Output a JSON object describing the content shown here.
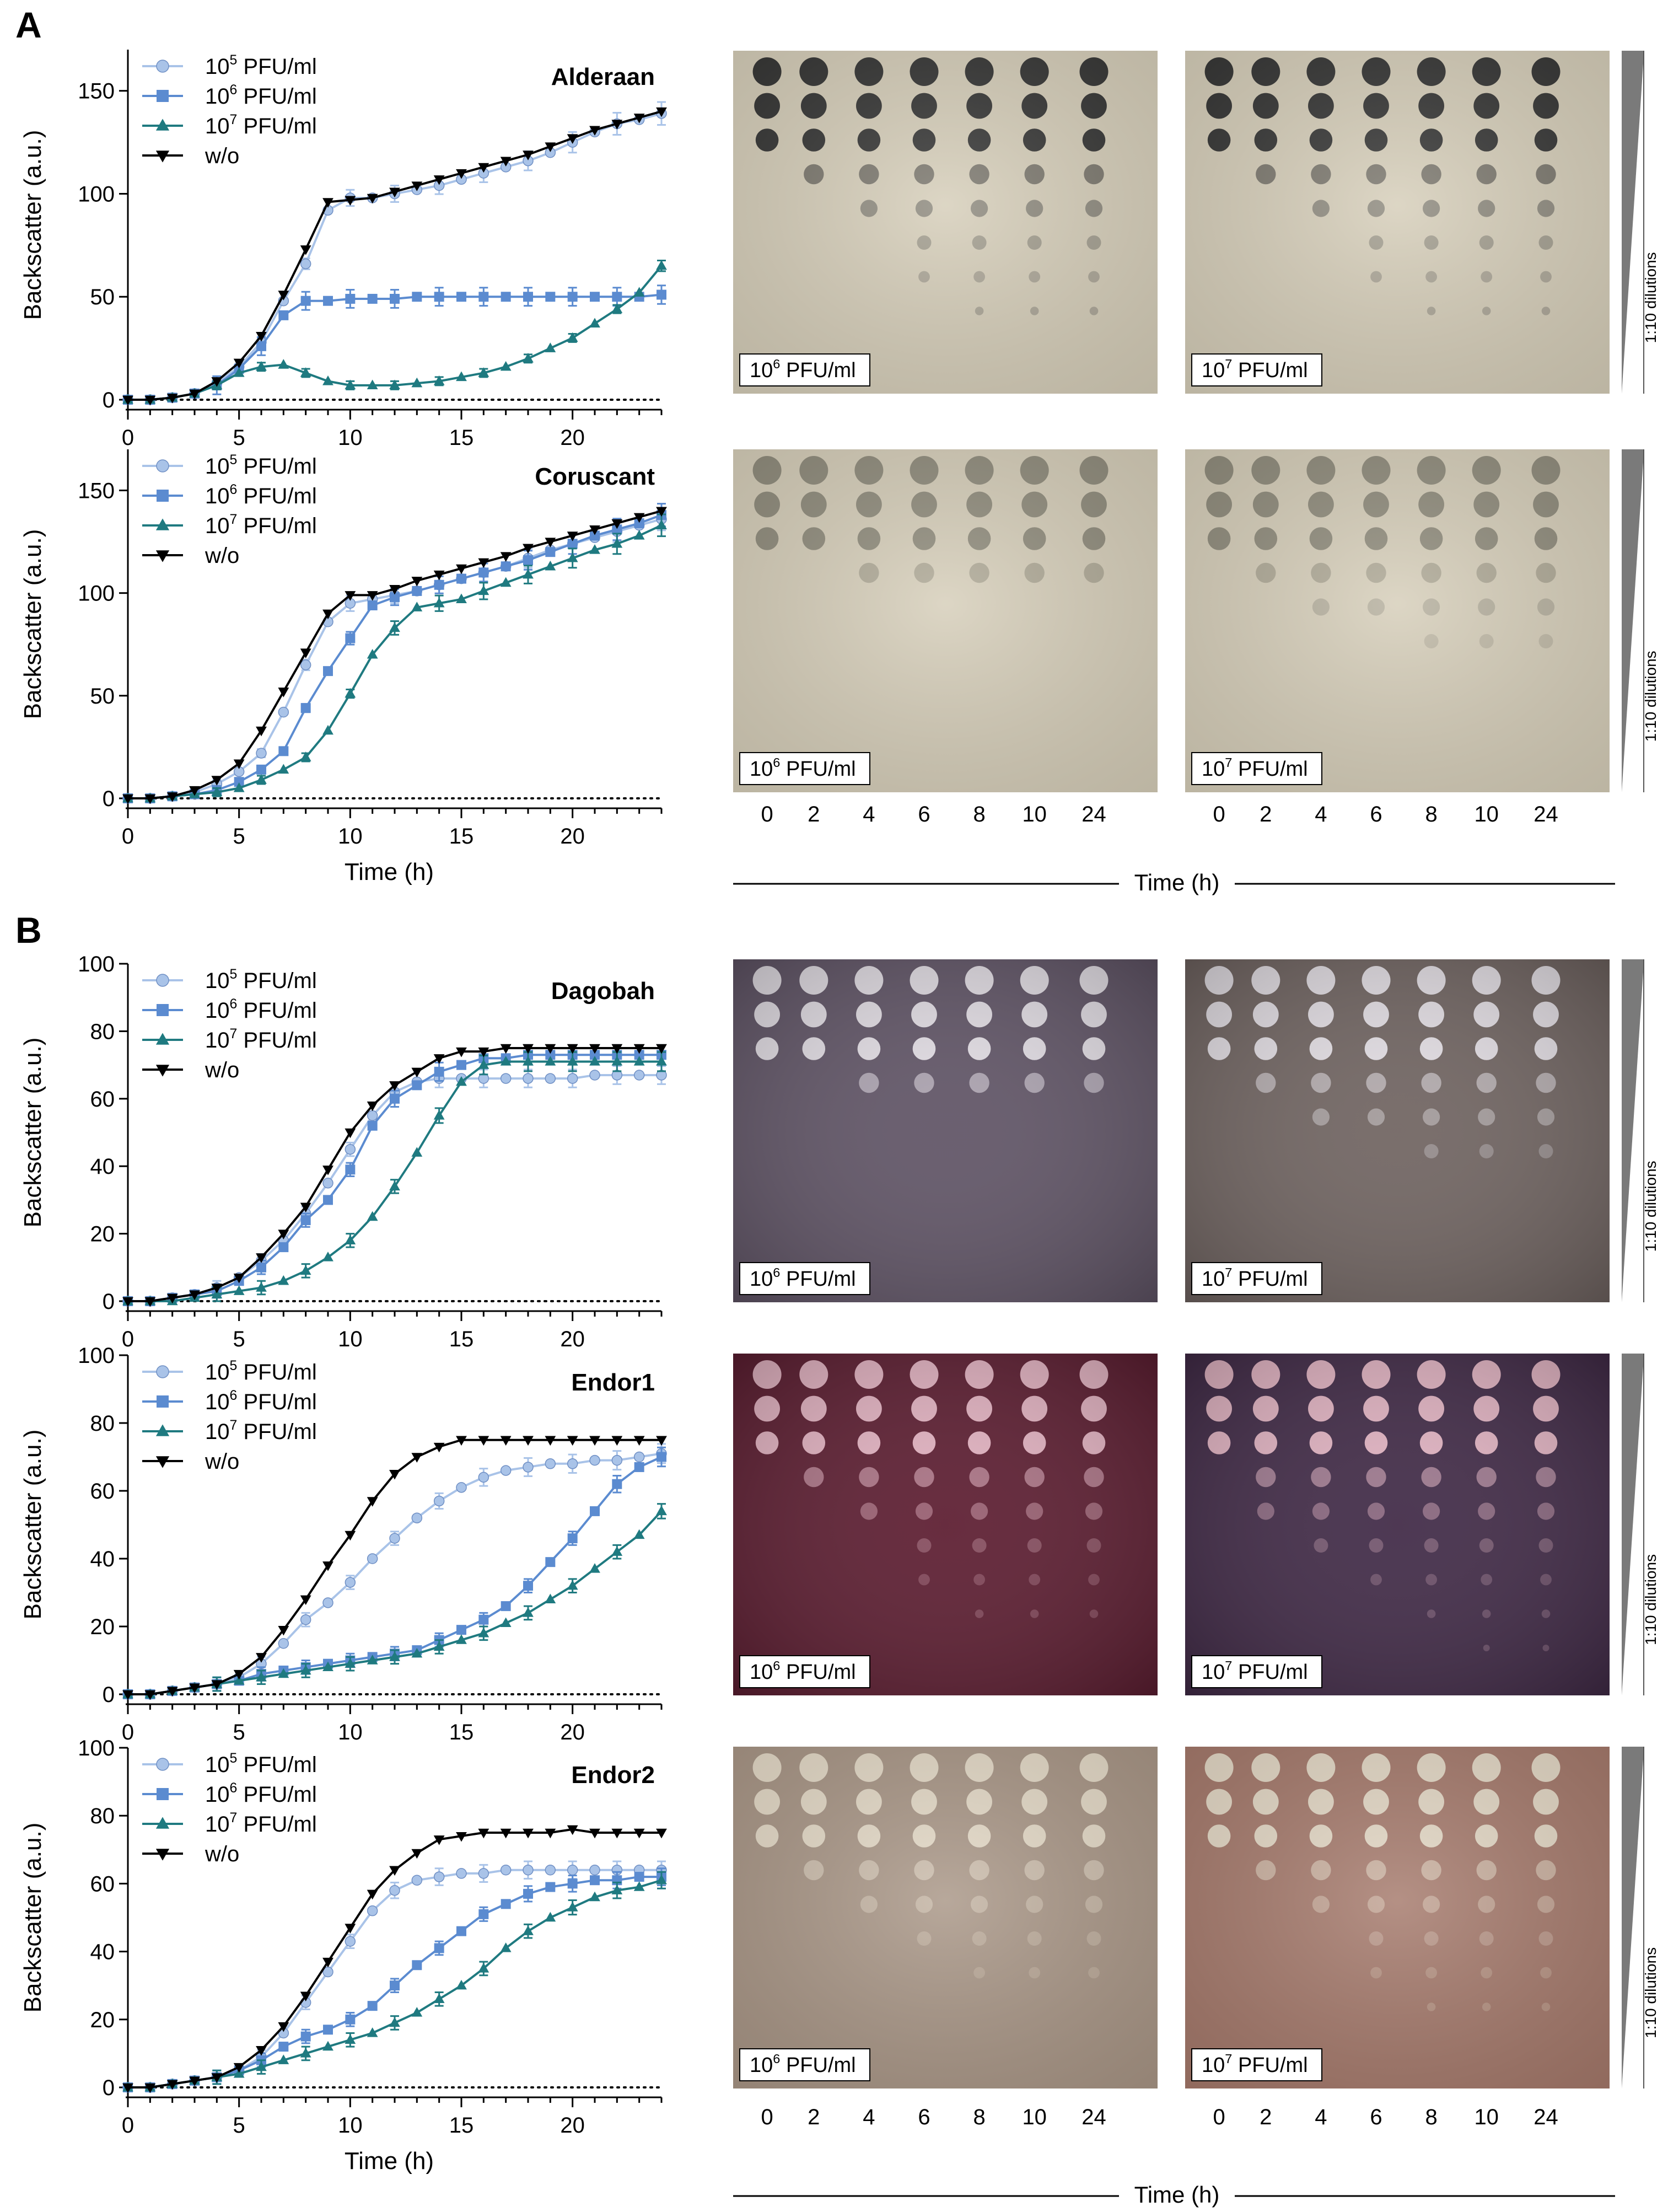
{
  "colors": {
    "c1e5": "#a9c3e8",
    "c1e6": "#5b8bd0",
    "c1e7": "#1f7a80",
    "cwo": "#000000",
    "plateA": "#d5cdb8",
    "plateDagobah1": "#5e5264",
    "plateDagobah2": "#6e625f",
    "plateEndor1a": "#5a1a2e",
    "plateEndor1b": "#3e2744",
    "plateEndor2a": "#a89585",
    "plateEndor2b": "#a4786a"
  },
  "panels": {
    "A": "A",
    "B": "B"
  },
  "common": {
    "ylabel": "Backscatter (a.u.)",
    "xlabel": "Time (h)",
    "x_time_label": "Time (h)",
    "dilutions_label": "1:10 dilutions",
    "photo_time_ticks": [
      "0",
      "2",
      "4",
      "6",
      "8",
      "10",
      "24"
    ],
    "legend": [
      {
        "base": "10",
        "exp": "5",
        "unit": " PFU/ml"
      },
      {
        "base": "10",
        "exp": "6",
        "unit": " PFU/ml"
      },
      {
        "base": "10",
        "exp": "7",
        "unit": " PFU/ml"
      },
      {
        "base": "w/o",
        "exp": "",
        "unit": ""
      }
    ],
    "plate_labels": [
      {
        "base": "10",
        "exp": "6",
        "unit": " PFU/ml"
      },
      {
        "base": "10",
        "exp": "7",
        "unit": " PFU/ml"
      }
    ]
  },
  "chart_data": [
    {
      "type": "line",
      "title": "Alderaan",
      "xlabel": "",
      "ylabel": "Backscatter (a.u.)",
      "xlim": [
        0,
        24
      ],
      "ylim": [
        0,
        170
      ],
      "yticks": [
        0,
        50,
        100,
        150
      ],
      "xticks": [
        0,
        5,
        10,
        15,
        20
      ],
      "x": [
        0,
        1,
        2,
        3,
        4,
        5,
        6,
        7,
        8,
        9,
        10,
        11,
        12,
        13,
        14,
        15,
        16,
        17,
        18,
        19,
        20,
        21,
        22,
        23,
        24
      ],
      "series": [
        {
          "name": "10^5 PFU/ml",
          "values": [
            0,
            0,
            1,
            3,
            8,
            16,
            28,
            48,
            66,
            92,
            98,
            98,
            100,
            102,
            104,
            107,
            110,
            113,
            116,
            120,
            125,
            130,
            134,
            136,
            139
          ]
        },
        {
          "name": "10^6 PFU/ml",
          "values": [
            0,
            0,
            1,
            3,
            7,
            15,
            26,
            41,
            48,
            48,
            49,
            49,
            49,
            50,
            50,
            50,
            50,
            50,
            50,
            50,
            50,
            50,
            50,
            50,
            51
          ]
        },
        {
          "name": "10^7 PFU/ml",
          "values": [
            0,
            0,
            1,
            3,
            7,
            13,
            16,
            17,
            13,
            9,
            7,
            7,
            7,
            8,
            9,
            11,
            13,
            16,
            20,
            25,
            30,
            37,
            44,
            52,
            65
          ]
        },
        {
          "name": "w/o",
          "values": [
            0,
            0,
            1,
            3,
            9,
            18,
            31,
            51,
            73,
            96,
            97,
            98,
            101,
            104,
            107,
            110,
            113,
            116,
            119,
            123,
            127,
            131,
            134,
            137,
            140
          ]
        }
      ]
    },
    {
      "type": "line",
      "title": "Coruscant",
      "xlabel": "Time (h)",
      "ylabel": "Backscatter (a.u.)",
      "xlim": [
        0,
        24
      ],
      "ylim": [
        0,
        170
      ],
      "yticks": [
        0,
        50,
        100,
        150
      ],
      "xticks": [
        0,
        5,
        10,
        15,
        20
      ],
      "x": [
        0,
        1,
        2,
        3,
        4,
        5,
        6,
        7,
        8,
        9,
        10,
        11,
        12,
        13,
        14,
        15,
        16,
        17,
        18,
        19,
        20,
        21,
        22,
        23,
        24
      ],
      "series": [
        {
          "name": "10^5 PFU/ml",
          "values": [
            0,
            0,
            1,
            3,
            7,
            13,
            22,
            42,
            65,
            86,
            95,
            97,
            99,
            101,
            104,
            107,
            110,
            113,
            117,
            121,
            124,
            127,
            130,
            133,
            136
          ]
        },
        {
          "name": "10^6 PFU/ml",
          "values": [
            0,
            0,
            1,
            2,
            4,
            8,
            14,
            23,
            44,
            62,
            78,
            94,
            98,
            101,
            104,
            107,
            110,
            113,
            116,
            120,
            124,
            128,
            131,
            134,
            138
          ]
        },
        {
          "name": "10^7 PFU/ml",
          "values": [
            0,
            0,
            1,
            2,
            3,
            5,
            9,
            14,
            20,
            33,
            51,
            70,
            83,
            93,
            95,
            97,
            101,
            105,
            109,
            113,
            117,
            121,
            124,
            128,
            133
          ]
        },
        {
          "name": "w/o",
          "values": [
            0,
            0,
            1,
            4,
            9,
            17,
            33,
            52,
            71,
            90,
            99,
            99,
            102,
            106,
            109,
            112,
            115,
            118,
            122,
            125,
            128,
            131,
            134,
            137,
            140
          ]
        }
      ]
    },
    {
      "type": "line",
      "title": "Dagobah",
      "xlabel": "",
      "ylabel": "Backscatter (a.u.)",
      "xlim": [
        0,
        24
      ],
      "ylim": [
        0,
        100
      ],
      "yticks": [
        0,
        20,
        40,
        60,
        80,
        100
      ],
      "xticks": [
        0,
        5,
        10,
        15,
        20
      ],
      "x": [
        0,
        1,
        2,
        3,
        4,
        5,
        6,
        7,
        8,
        9,
        10,
        11,
        12,
        13,
        14,
        15,
        16,
        17,
        18,
        19,
        20,
        21,
        22,
        23,
        24
      ],
      "series": [
        {
          "name": "10^5 PFU/ml",
          "values": [
            0,
            0,
            1,
            2,
            4,
            7,
            12,
            18,
            26,
            35,
            45,
            55,
            62,
            65,
            66,
            66,
            66,
            66,
            66,
            66,
            66,
            67,
            67,
            67,
            67
          ]
        },
        {
          "name": "10^6 PFU/ml",
          "values": [
            0,
            0,
            1,
            2,
            3,
            6,
            10,
            16,
            24,
            30,
            39,
            52,
            60,
            64,
            68,
            70,
            72,
            72,
            73,
            73,
            73,
            73,
            73,
            73,
            73
          ]
        },
        {
          "name": "10^7 PFU/ml",
          "values": [
            0,
            0,
            0,
            1,
            2,
            3,
            4,
            6,
            9,
            13,
            18,
            25,
            34,
            44,
            55,
            65,
            70,
            71,
            71,
            71,
            71,
            71,
            71,
            71,
            71
          ]
        },
        {
          "name": "w/o",
          "values": [
            0,
            0,
            1,
            2,
            4,
            7,
            13,
            20,
            28,
            39,
            50,
            58,
            64,
            68,
            72,
            74,
            74,
            75,
            75,
            75,
            75,
            75,
            75,
            75,
            75
          ]
        }
      ]
    },
    {
      "type": "line",
      "title": "Endor1",
      "xlabel": "",
      "ylabel": "Backscatter (a.u.)",
      "xlim": [
        0,
        24
      ],
      "ylim": [
        0,
        100
      ],
      "yticks": [
        0,
        20,
        40,
        60,
        80,
        100
      ],
      "xticks": [
        0,
        5,
        10,
        15,
        20
      ],
      "x": [
        0,
        1,
        2,
        3,
        4,
        5,
        6,
        7,
        8,
        9,
        10,
        11,
        12,
        13,
        14,
        15,
        16,
        17,
        18,
        19,
        20,
        21,
        22,
        23,
        24
      ],
      "series": [
        {
          "name": "10^5 PFU/ml",
          "values": [
            0,
            0,
            1,
            2,
            3,
            5,
            9,
            15,
            22,
            27,
            33,
            40,
            46,
            52,
            57,
            61,
            64,
            66,
            67,
            68,
            68,
            69,
            69,
            70,
            71
          ]
        },
        {
          "name": "10^6 PFU/ml",
          "values": [
            0,
            0,
            1,
            2,
            3,
            4,
            6,
            7,
            8,
            9,
            10,
            11,
            12,
            13,
            16,
            19,
            22,
            26,
            32,
            39,
            46,
            54,
            62,
            67,
            70
          ]
        },
        {
          "name": "10^7 PFU/ml",
          "values": [
            0,
            0,
            1,
            2,
            3,
            4,
            5,
            6,
            7,
            8,
            9,
            10,
            11,
            12,
            14,
            16,
            18,
            21,
            24,
            28,
            32,
            37,
            42,
            47,
            54
          ]
        },
        {
          "name": "w/o",
          "values": [
            0,
            0,
            1,
            2,
            3,
            6,
            11,
            19,
            28,
            38,
            47,
            57,
            65,
            70,
            73,
            75,
            75,
            75,
            75,
            75,
            75,
            75,
            75,
            75,
            75
          ]
        }
      ]
    },
    {
      "type": "line",
      "title": "Endor2",
      "xlabel": "Time (h)",
      "ylabel": "Backscatter (a.u.)",
      "xlim": [
        0,
        24
      ],
      "ylim": [
        0,
        100
      ],
      "yticks": [
        0,
        20,
        40,
        60,
        80,
        100
      ],
      "xticks": [
        0,
        5,
        10,
        15,
        20
      ],
      "x": [
        0,
        1,
        2,
        3,
        4,
        5,
        6,
        7,
        8,
        9,
        10,
        11,
        12,
        13,
        14,
        15,
        16,
        17,
        18,
        19,
        20,
        21,
        22,
        23,
        24
      ],
      "series": [
        {
          "name": "10^5 PFU/ml",
          "values": [
            0,
            0,
            1,
            2,
            3,
            5,
            9,
            16,
            25,
            34,
            43,
            52,
            58,
            61,
            62,
            63,
            63,
            64,
            64,
            64,
            64,
            64,
            64,
            64,
            64
          ]
        },
        {
          "name": "10^6 PFU/ml",
          "values": [
            0,
            0,
            1,
            2,
            3,
            5,
            8,
            12,
            15,
            17,
            20,
            24,
            30,
            36,
            41,
            46,
            51,
            54,
            57,
            59,
            60,
            61,
            61,
            62,
            62
          ]
        },
        {
          "name": "10^7 PFU/ml",
          "values": [
            0,
            0,
            1,
            2,
            3,
            4,
            6,
            8,
            10,
            12,
            14,
            16,
            19,
            22,
            26,
            30,
            35,
            41,
            46,
            50,
            53,
            56,
            58,
            59,
            61
          ]
        },
        {
          "name": "w/o",
          "values": [
            0,
            0,
            1,
            2,
            3,
            6,
            11,
            18,
            27,
            37,
            47,
            57,
            64,
            69,
            73,
            74,
            75,
            75,
            75,
            75,
            76,
            75,
            75,
            75,
            75
          ]
        }
      ]
    }
  ]
}
